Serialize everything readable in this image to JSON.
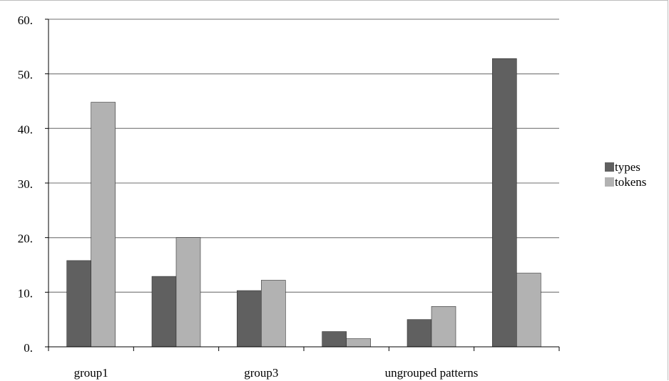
{
  "chart_data": {
    "type": "bar",
    "categories": [
      "group1",
      "",
      "group3",
      "",
      "ungrouped patterns",
      ""
    ],
    "series": [
      {
        "name": "types",
        "values": [
          15.8,
          12.9,
          10.3,
          2.8,
          5.0,
          52.8
        ],
        "color": "#606060"
      },
      {
        "name": "tokens",
        "values": [
          44.8,
          20.0,
          12.2,
          1.5,
          7.4,
          13.5
        ],
        "color": "#b2b2b2"
      }
    ],
    "ylim": [
      0,
      60
    ],
    "yticks": [
      0,
      10,
      20,
      30,
      40,
      50,
      60
    ],
    "ytick_labels": [
      "0.",
      "10.",
      "20.",
      "30.",
      "40.",
      "50.",
      "60."
    ],
    "grid": true,
    "legend": "right",
    "title": "",
    "xlabel": "",
    "ylabel": ""
  }
}
